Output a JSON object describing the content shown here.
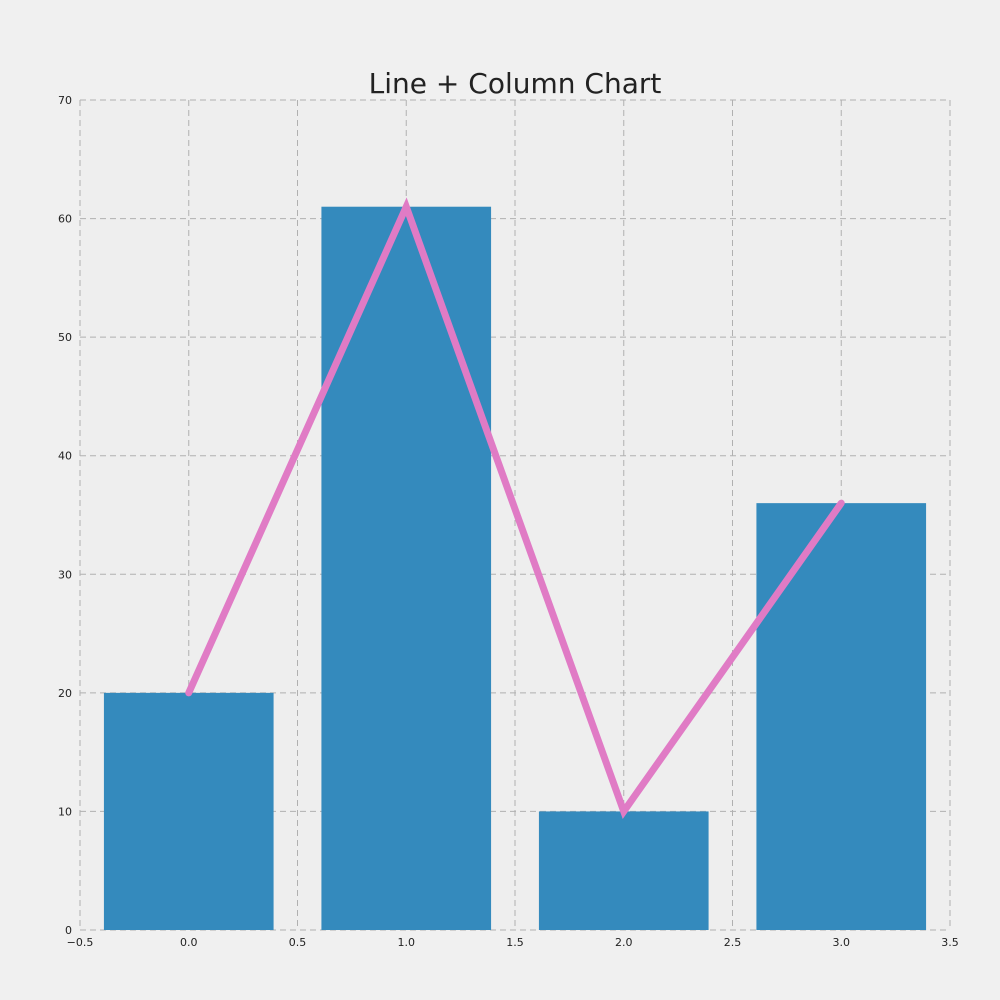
{
  "chart_data": {
    "type": "bar",
    "title": "Line + Column Chart",
    "xlabel": "",
    "ylabel": "",
    "x": [
      0,
      1,
      2,
      3
    ],
    "series": [
      {
        "type": "bar",
        "values": [
          20,
          61,
          10,
          36
        ]
      },
      {
        "type": "line",
        "values": [
          20,
          61,
          10,
          36
        ]
      }
    ],
    "xlim": [
      -0.5,
      3.5
    ],
    "ylim": [
      0,
      70
    ],
    "xticks": [
      -0.5,
      0.0,
      0.5,
      1.0,
      1.5,
      2.0,
      2.5,
      3.0,
      3.5
    ],
    "xtick_labels": [
      "−0.5",
      "0.0",
      "0.5",
      "1.0",
      "1.5",
      "2.0",
      "2.5",
      "3.0",
      "3.5"
    ],
    "yticks": [
      0,
      10,
      20,
      30,
      40,
      50,
      60,
      70
    ],
    "ytick_labels": [
      "0",
      "10",
      "20",
      "30",
      "40",
      "50",
      "60",
      "70"
    ],
    "bar_width": 0.78,
    "grid": true,
    "colors": {
      "bar": "#348abd",
      "line": "#e07bc5",
      "plot_background": "#eeeeee",
      "figure_background": "#f0f0f0",
      "grid": "#b0b0b0"
    }
  }
}
